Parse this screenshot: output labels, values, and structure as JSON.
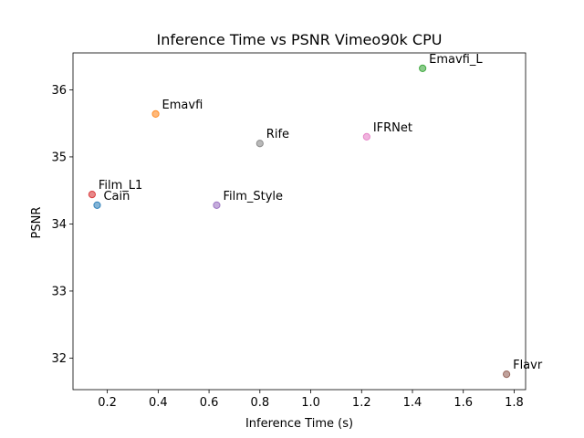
{
  "chart_data": {
    "type": "scatter",
    "title": "Inference Time vs PSNR Vimeo90k CPU",
    "xlabel": "Inference Time (s)",
    "ylabel": "PSNR",
    "xlim": [
      0.065,
      1.845
    ],
    "ylim": [
      31.53,
      36.55
    ],
    "x_ticks": [
      0.2,
      0.4,
      0.6,
      0.8,
      1.0,
      1.2,
      1.4,
      1.6,
      1.8
    ],
    "x_tick_labels": [
      "0.2",
      "0.4",
      "0.6",
      "0.8",
      "1.0",
      "1.2",
      "1.4",
      "1.6",
      "1.8"
    ],
    "y_ticks": [
      32,
      33,
      34,
      35,
      36
    ],
    "y_tick_labels": [
      "32",
      "33",
      "34",
      "35",
      "36"
    ],
    "grid": false,
    "points": [
      {
        "label": "Cain",
        "x": 0.16,
        "y": 34.28,
        "color": "#1f77b4"
      },
      {
        "label": "Emavfi",
        "x": 0.39,
        "y": 35.64,
        "color": "#ff7f0e"
      },
      {
        "label": "Emavfi_L",
        "x": 1.44,
        "y": 36.32,
        "color": "#2ca02c"
      },
      {
        "label": "Film_L1",
        "x": 0.14,
        "y": 34.44,
        "color": "#d62728"
      },
      {
        "label": "Film_Style",
        "x": 0.63,
        "y": 34.28,
        "color": "#9467bd"
      },
      {
        "label": "Flavr",
        "x": 1.77,
        "y": 31.76,
        "color": "#8c564b"
      },
      {
        "label": "IFRNet",
        "x": 1.22,
        "y": 35.3,
        "color": "#e377c2"
      },
      {
        "label": "Rife",
        "x": 0.8,
        "y": 35.2,
        "color": "#7f7f7f"
      }
    ]
  }
}
